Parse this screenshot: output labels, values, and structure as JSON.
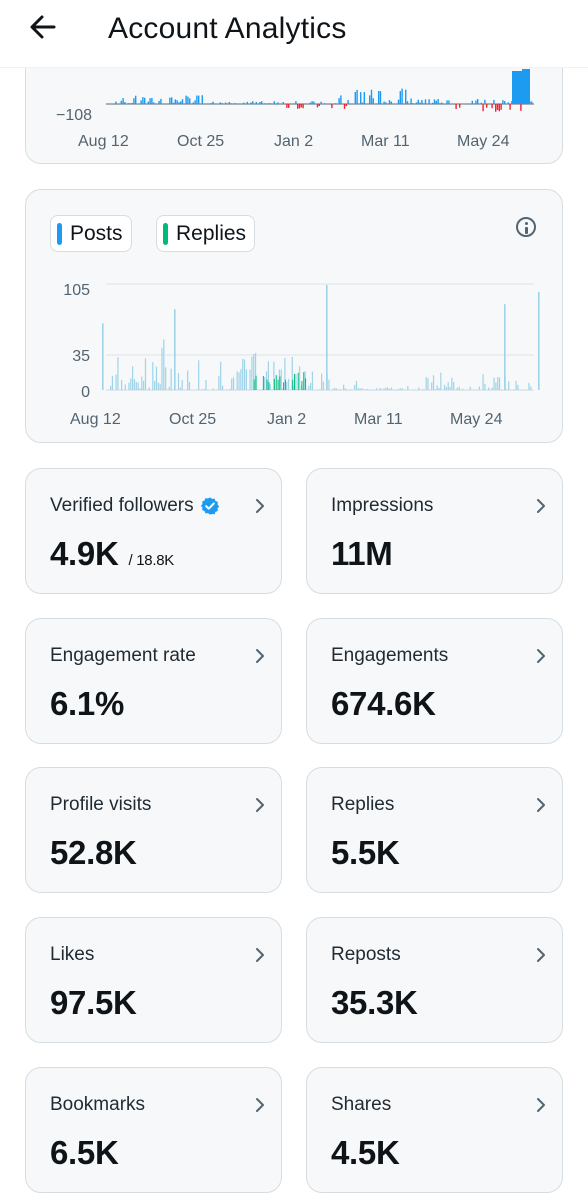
{
  "header": {
    "title": "Account Analytics",
    "back_icon": "arrow-left-icon"
  },
  "top_chart": {
    "ytick": "−108",
    "xticks": [
      "Aug 12",
      "Oct 25",
      "Jan 2",
      "Mar 11",
      "May 24"
    ],
    "colors": {
      "positive": "#1d9bf0",
      "negative": "#f4212e",
      "baseline": "#8899a6"
    }
  },
  "activity_chart": {
    "legend": [
      {
        "label": "Posts",
        "color": "#1d9bf0"
      },
      {
        "label": "Replies",
        "color": "#00ba7c"
      }
    ],
    "info_icon": "info-icon"
  },
  "chart_data": {
    "type": "bar",
    "x": [
      "Aug 12",
      "Oct 25",
      "Jan 2",
      "Mar 11",
      "May 24"
    ],
    "ylim": [
      0,
      105
    ],
    "yticks": [
      "105",
      "35",
      "0"
    ],
    "series": [
      {
        "name": "Posts",
        "color": "#9fd3ea"
      },
      {
        "name": "Replies",
        "color": "#00ba7c"
      }
    ],
    "peaks": [
      {
        "x": "Aug 12",
        "y": 66
      },
      {
        "x": "Oct 25",
        "y": 80
      },
      {
        "x": "Jan 2",
        "y": 104
      },
      {
        "x": "May 24",
        "y": 85
      },
      {
        "x": "May 24",
        "y": 97
      }
    ],
    "grid": true
  },
  "metrics": [
    {
      "label": "Verified followers",
      "value": "4.9K",
      "sub": "/ 18.8K",
      "verified": true
    },
    {
      "label": "Impressions",
      "value": "11M"
    },
    {
      "label": "Engagement rate",
      "value": "6.1%"
    },
    {
      "label": "Engagements",
      "value": "674.6K"
    },
    {
      "label": "Profile visits",
      "value": "52.8K"
    },
    {
      "label": "Replies",
      "value": "5.5K"
    },
    {
      "label": "Likes",
      "value": "97.5K"
    },
    {
      "label": "Reposts",
      "value": "35.3K"
    },
    {
      "label": "Bookmarks",
      "value": "6.5K"
    },
    {
      "label": "Shares",
      "value": "4.5K"
    }
  ],
  "icons": {
    "chevron": "chevron-right-icon",
    "verified": "verified-badge-icon"
  }
}
